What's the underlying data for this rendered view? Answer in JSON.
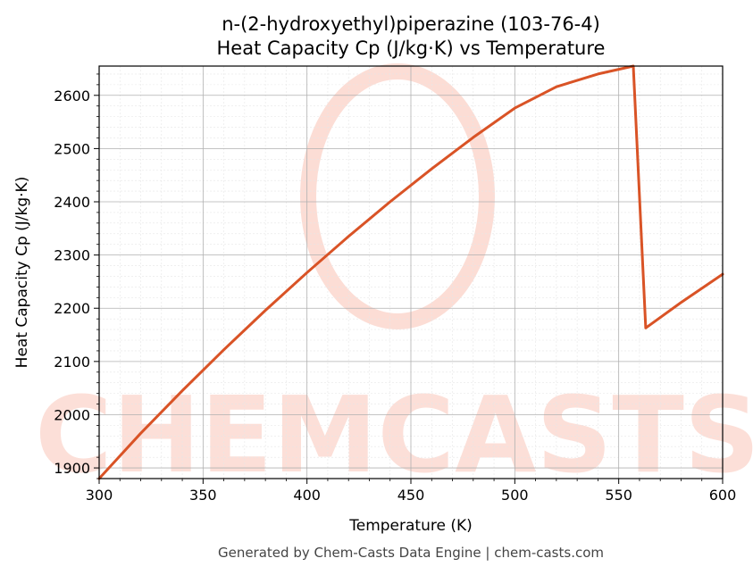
{
  "chart_data": {
    "type": "line",
    "title": "n-(2-hydroxyethyl)piperazine (103-76-4)",
    "subtitle": "Heat Capacity Cp (J/kg·K) vs Temperature",
    "xlabel": "Temperature (K)",
    "ylabel": "Heat Capacity Cp (J/kg·K)",
    "xlim": [
      300,
      600
    ],
    "ylim": [
      1880,
      2655
    ],
    "xticks": [
      "300",
      "350",
      "400",
      "450",
      "500",
      "550",
      "600"
    ],
    "yticks": [
      "1900",
      "2000",
      "2100",
      "2200",
      "2300",
      "2400",
      "2500",
      "2600"
    ],
    "grid": true,
    "line_color": "#d95326",
    "series": [
      {
        "x": [
          300,
          320,
          340,
          360,
          380,
          400,
          420,
          440,
          460,
          480,
          500,
          520,
          540,
          557,
          563,
          580,
          600
        ],
        "y": [
          1880,
          1965,
          2045,
          2122,
          2196,
          2267,
          2335,
          2400,
          2462,
          2521,
          2576,
          2616,
          2640,
          2655,
          2163,
          2211,
          2264
        ]
      }
    ]
  },
  "watermark": "CHEMCASTS",
  "footer": "Generated by Chem-Casts Data Engine | chem-casts.com"
}
